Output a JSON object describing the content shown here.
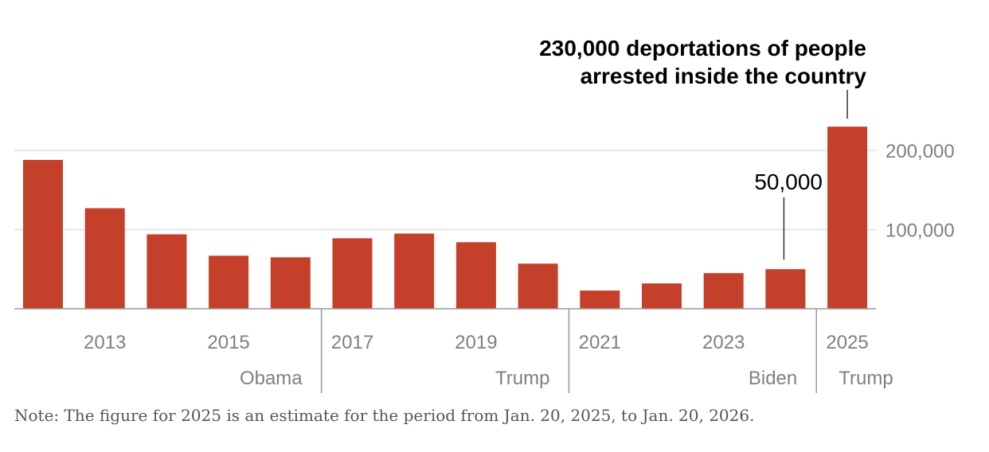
{
  "chart_data": {
    "type": "bar",
    "categories": [
      "2012",
      "2013",
      "2014",
      "2015",
      "2016",
      "2017",
      "2018",
      "2019",
      "2020",
      "2021",
      "2022",
      "2023",
      "2024",
      "2025"
    ],
    "values": [
      188000,
      127000,
      94000,
      67000,
      65000,
      89000,
      95000,
      84000,
      57000,
      23000,
      32000,
      45000,
      50000,
      230000
    ],
    "ylim": [
      0,
      230000
    ],
    "y_ticks": [
      {
        "value": 100000,
        "label": "100,000"
      },
      {
        "value": 200000,
        "label": "200,000"
      }
    ],
    "x_tick_labels": [
      {
        "category": "2013",
        "label": "2013"
      },
      {
        "category": "2015",
        "label": "2015"
      },
      {
        "category": "2017",
        "label": "2017"
      },
      {
        "category": "2019",
        "label": "2019"
      },
      {
        "category": "2021",
        "label": "2021"
      },
      {
        "category": "2023",
        "label": "2023"
      },
      {
        "category": "2025",
        "label": "2025"
      }
    ],
    "eras": [
      {
        "label": "Obama",
        "first": "2012",
        "last": "2016"
      },
      {
        "label": "Trump",
        "first": "2017",
        "last": "2020"
      },
      {
        "label": "Biden",
        "first": "2021",
        "last": "2024"
      },
      {
        "label": "Trump",
        "first": "2025",
        "last": "2025"
      }
    ],
    "annotations": [
      {
        "category": "2025",
        "lines": [
          "230,000 deportations of people",
          "arrested inside the country"
        ],
        "style": "bold"
      },
      {
        "category": "2024",
        "lines": [
          "50,000"
        ],
        "style": "plain"
      }
    ],
    "grid": true,
    "y_axis_position": "right",
    "xlabel": "",
    "ylabel": ""
  },
  "colors": {
    "bar": "#c4402a",
    "grid": "#dddddd",
    "axis": "#999999"
  },
  "note": "Note: The figure for 2025 is an estimate for the period from Jan. 20, 2025, to Jan. 20, 2026."
}
